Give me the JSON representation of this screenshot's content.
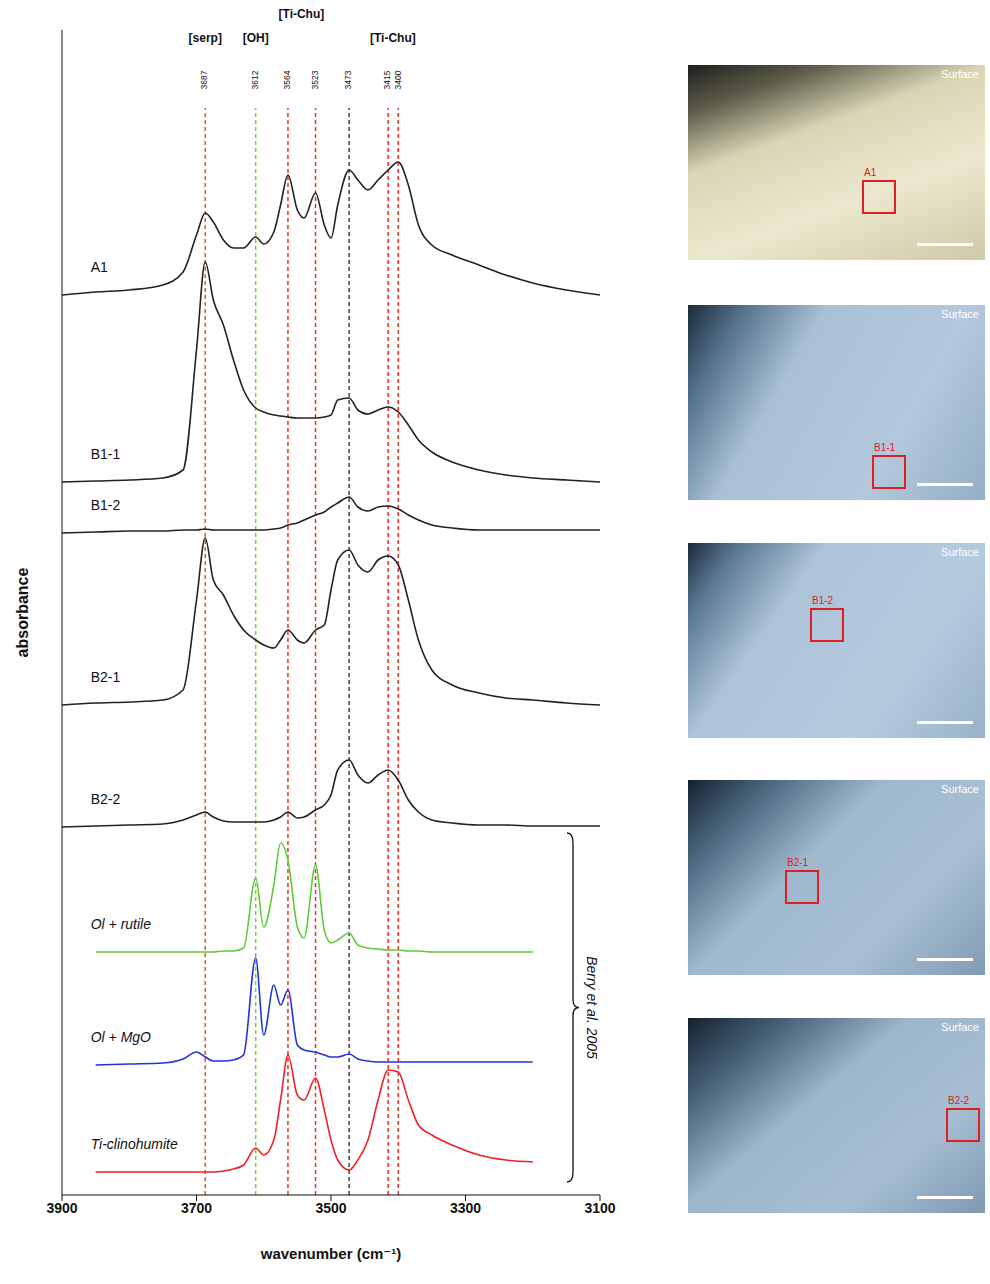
{
  "chart_data": {
    "type": "line",
    "x_label": "wavenumber (cm⁻¹)",
    "y_label": "absorbance",
    "x": [
      3900,
      3850,
      3800,
      3750,
      3720,
      3700,
      3687,
      3675,
      3660,
      3645,
      3630,
      3612,
      3600,
      3585,
      3575,
      3564,
      3550,
      3540,
      3523,
      3510,
      3500,
      3490,
      3473,
      3460,
      3445,
      3430,
      3415,
      3400,
      3385,
      3370,
      3350,
      3320,
      3280,
      3240,
      3200,
      3150,
      3100
    ],
    "xlim": [
      3900,
      3100
    ],
    "xticks": [
      3900,
      3700,
      3500,
      3300,
      3100
    ],
    "ylim": [
      0,
      1165
    ],
    "yticks": [],
    "tick_labels": "x",
    "series": [
      {
        "name": "A1",
        "color": "#222222",
        "values": [
          900,
          903,
          905,
          910,
          923,
          960,
          982,
          973,
          955,
          947,
          947,
          958,
          951,
          963,
          990,
          1020,
          985,
          977,
          1002,
          970,
          957,
          990,
          1025,
          1015,
          1005,
          1015,
          1025,
          1033,
          1010,
          970,
          950,
          940,
          930,
          920,
          912,
          905,
          900
        ]
      },
      {
        "name": "B1-1",
        "color": "#222222",
        "values": [
          713,
          714,
          715,
          717,
          725,
          845,
          933,
          895,
          870,
          835,
          805,
          787,
          783,
          780,
          779,
          778,
          777,
          777,
          777,
          778,
          780,
          795,
          797,
          785,
          781,
          785,
          788,
          783,
          770,
          755,
          743,
          733,
          725,
          720,
          717,
          715,
          713
        ]
      },
      {
        "name": "B1-2",
        "color": "#222222",
        "values": [
          662,
          663,
          664,
          664,
          665,
          665,
          666,
          665,
          665,
          665,
          665,
          665,
          665,
          666,
          667,
          670,
          672,
          675,
          680,
          683,
          688,
          692,
          698,
          688,
          684,
          688,
          689,
          686,
          680,
          675,
          670,
          667,
          665,
          665,
          665,
          665,
          665
        ]
      },
      {
        "name": "B2-1",
        "color": "#222222",
        "values": [
          490,
          492,
          493,
          495,
          505,
          595,
          657,
          615,
          600,
          580,
          565,
          555,
          550,
          547,
          555,
          565,
          555,
          552,
          565,
          570,
          605,
          635,
          645,
          630,
          623,
          635,
          639,
          630,
          595,
          555,
          525,
          510,
          502,
          497,
          495,
          492,
          490
        ]
      },
      {
        "name": "B2-2",
        "color": "#222222",
        "values": [
          368,
          369,
          370,
          371,
          375,
          380,
          383,
          378,
          374,
          373,
          373,
          373,
          373,
          375,
          378,
          383,
          377,
          378,
          385,
          390,
          400,
          425,
          435,
          420,
          412,
          420,
          425,
          415,
          395,
          383,
          375,
          372,
          370,
          370,
          369,
          369,
          369
        ]
      },
      {
        "name": "Ol + rutile",
        "color": "#5ccc3a",
        "values": [
          null,
          243,
          243,
          243,
          243,
          243,
          243,
          243,
          244,
          244,
          247,
          317,
          268,
          310,
          352,
          335,
          268,
          257,
          330,
          265,
          252,
          255,
          262,
          250,
          247,
          246,
          245,
          245,
          244,
          244,
          243,
          243,
          243,
          243,
          243,
          null,
          null
        ]
      },
      {
        "name": "Ol + MgO",
        "color": "#2233dd",
        "values": [
          null,
          130,
          131,
          132,
          136,
          143,
          138,
          134,
          134,
          135,
          140,
          237,
          160,
          210,
          190,
          205,
          150,
          145,
          143,
          140,
          138,
          138,
          141,
          136,
          134,
          133,
          133,
          133,
          133,
          133,
          133,
          133,
          133,
          133,
          133,
          null,
          null
        ]
      },
      {
        "name": "Ti-clinohumite",
        "color": "#ee2222",
        "values": [
          null,
          23,
          23,
          23,
          23,
          23,
          23,
          23,
          24,
          26,
          30,
          47,
          40,
          55,
          95,
          140,
          100,
          95,
          117,
          85,
          55,
          35,
          25,
          35,
          55,
          95,
          125,
          123,
          95,
          70,
          60,
          50,
          40,
          35,
          33,
          null,
          null
        ]
      }
    ],
    "reference_lines": [
      {
        "x": 3687,
        "color": "#e8562a"
      },
      {
        "x": 3612,
        "color": "#7ccd3c"
      },
      {
        "x": 3564,
        "color": "#e8302a"
      },
      {
        "x": 3523,
        "color": "#e8302a"
      },
      {
        "x": 3473,
        "color": "#444444"
      },
      {
        "x": 3415,
        "color": "#e8302a"
      },
      {
        "x": 3400,
        "color": "#e8302a"
      }
    ],
    "annotations": [
      {
        "text": "[serp]",
        "x": 3687
      },
      {
        "text": "[OH]",
        "x": 3612
      },
      {
        "text": "[Ti-Chu]",
        "x": 3544
      },
      {
        "text": "[Ti-Chu]",
        "x": 3408
      }
    ],
    "bracket": {
      "text": "Berry et al. 2005",
      "series": [
        "Ol + rutile",
        "Ol + MgO",
        "Ti-clinohumite"
      ]
    }
  },
  "photos": [
    {
      "label": "A1",
      "caption": "Surface"
    },
    {
      "label": "B1-1",
      "caption": "Surface"
    },
    {
      "label": "B1-2",
      "caption": "Surface"
    },
    {
      "label": "B2-1",
      "caption": "Surface"
    },
    {
      "label": "B2-2",
      "caption": "Surface"
    }
  ]
}
